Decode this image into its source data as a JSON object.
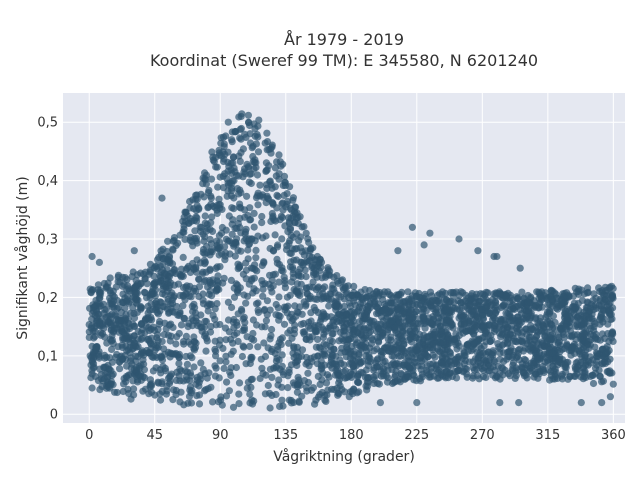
{
  "chart_data": {
    "type": "scatter",
    "title": "År 1979 - 2019",
    "subtitle": "Koordinat (Sweref 99 TM): E 345580, N 6201240",
    "xlabel": "Vågriktning (grader)",
    "ylabel": "Signifikant våghöjd (m)",
    "xlim": [
      -18,
      368
    ],
    "ylim": [
      -0.015,
      0.55
    ],
    "x_ticks": [
      {
        "value": 0,
        "label": "0"
      },
      {
        "value": 45,
        "label": "45"
      },
      {
        "value": 90,
        "label": "90"
      },
      {
        "value": 135,
        "label": "135"
      },
      {
        "value": 180,
        "label": "180"
      },
      {
        "value": 225,
        "label": "225"
      },
      {
        "value": 270,
        "label": "270"
      },
      {
        "value": 315,
        "label": "315"
      },
      {
        "value": 360,
        "label": "360"
      }
    ],
    "y_ticks": [
      {
        "value": 0,
        "label": "0"
      },
      {
        "value": 0.1,
        "label": "0,1"
      },
      {
        "value": 0.2,
        "label": "0,2"
      },
      {
        "value": 0.3,
        "label": "0,3"
      },
      {
        "value": 0.4,
        "label": "0,4"
      },
      {
        "value": 0.5,
        "label": "0,5"
      }
    ],
    "grid": true,
    "marker_color": "#2f5670",
    "plot_background": "#e5e8f1",
    "envelope": [
      {
        "x": 0,
        "ymin": 0.04,
        "ymax": 0.22
      },
      {
        "x": 20,
        "ymin": 0.03,
        "ymax": 0.24
      },
      {
        "x": 40,
        "ymin": 0.02,
        "ymax": 0.25
      },
      {
        "x": 60,
        "ymin": 0.01,
        "ymax": 0.32
      },
      {
        "x": 75,
        "ymin": 0.01,
        "ymax": 0.4
      },
      {
        "x": 90,
        "ymin": 0.01,
        "ymax": 0.48
      },
      {
        "x": 100,
        "ymin": 0.01,
        "ymax": 0.52
      },
      {
        "x": 115,
        "ymin": 0.01,
        "ymax": 0.51
      },
      {
        "x": 130,
        "ymin": 0.01,
        "ymax": 0.45
      },
      {
        "x": 145,
        "ymin": 0.01,
        "ymax": 0.34
      },
      {
        "x": 160,
        "ymin": 0.02,
        "ymax": 0.26
      },
      {
        "x": 180,
        "ymin": 0.03,
        "ymax": 0.22
      },
      {
        "x": 200,
        "ymin": 0.05,
        "ymax": 0.21
      },
      {
        "x": 240,
        "ymin": 0.06,
        "ymax": 0.21
      },
      {
        "x": 300,
        "ymin": 0.06,
        "ymax": 0.21
      },
      {
        "x": 360,
        "ymin": 0.05,
        "ymax": 0.22
      }
    ],
    "outliers": [
      {
        "x": 2,
        "y": 0.27
      },
      {
        "x": 7,
        "y": 0.26
      },
      {
        "x": 31,
        "y": 0.28
      },
      {
        "x": 50,
        "y": 0.37
      },
      {
        "x": 212,
        "y": 0.28
      },
      {
        "x": 222,
        "y": 0.32
      },
      {
        "x": 234,
        "y": 0.31
      },
      {
        "x": 230,
        "y": 0.29
      },
      {
        "x": 254,
        "y": 0.3
      },
      {
        "x": 267,
        "y": 0.28
      },
      {
        "x": 278,
        "y": 0.27
      },
      {
        "x": 280,
        "y": 0.27
      },
      {
        "x": 296,
        "y": 0.25
      },
      {
        "x": 200,
        "y": 0.02
      },
      {
        "x": 225,
        "y": 0.02
      },
      {
        "x": 282,
        "y": 0.02
      },
      {
        "x": 295,
        "y": 0.02
      },
      {
        "x": 338,
        "y": 0.02
      },
      {
        "x": 352,
        "y": 0.02
      },
      {
        "x": 358,
        "y": 0.03
      }
    ]
  }
}
